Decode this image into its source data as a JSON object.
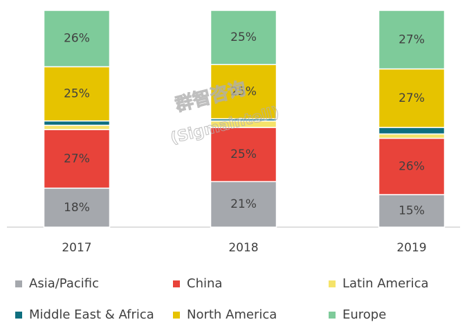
{
  "chart_data": {
    "type": "stacked_bar",
    "categories": [
      "2017",
      "2018",
      "2019"
    ],
    "ylim": [
      0,
      100
    ],
    "watermark": [
      "群智咨询",
      "(Sigmaintell)"
    ],
    "series": [
      {
        "name": "Asia/Pacific",
        "color": "#a5a8ad",
        "values": [
          18,
          21,
          15
        ],
        "value_labels": [
          "18%",
          "21%",
          "15%"
        ]
      },
      {
        "name": "China",
        "color": "#e8433a",
        "values": [
          27,
          25,
          26
        ],
        "value_labels": [
          "27%",
          "25%",
          "26%"
        ]
      },
      {
        "name": "Latin America",
        "color": "#f5e36a",
        "values": [
          2,
          3,
          2
        ],
        "value_labels": [
          null,
          null,
          null
        ]
      },
      {
        "name": "Middle East & Africa",
        "color": "#0f6f7f",
        "values": [
          2,
          1,
          3
        ],
        "value_labels": [
          null,
          null,
          null
        ]
      },
      {
        "name": "North America",
        "color": "#e6c300",
        "values": [
          25,
          25,
          27
        ],
        "value_labels": [
          "25%",
          "25%",
          "27%"
        ]
      },
      {
        "name": "Europe",
        "color": "#7ecb9a",
        "values": [
          26,
          25,
          27
        ],
        "value_labels": [
          "26%",
          "25%",
          "27%"
        ]
      }
    ]
  }
}
